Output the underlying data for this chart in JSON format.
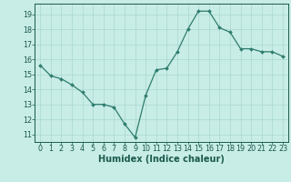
{
  "x": [
    0,
    1,
    2,
    3,
    4,
    5,
    6,
    7,
    8,
    9,
    10,
    11,
    12,
    13,
    14,
    15,
    16,
    17,
    18,
    19,
    20,
    21,
    22,
    23
  ],
  "y": [
    15.6,
    14.9,
    14.7,
    14.3,
    13.8,
    13.0,
    13.0,
    12.8,
    11.7,
    10.8,
    13.6,
    15.3,
    15.4,
    16.5,
    18.0,
    19.2,
    19.2,
    18.1,
    17.8,
    16.7,
    16.7,
    16.5,
    16.5,
    16.2
  ],
  "line_color": "#2e7d6e",
  "marker": "D",
  "marker_size": 2.0,
  "bg_color": "#c8ece6",
  "grid_color": "#a8d8d0",
  "xlabel": "Humidex (Indice chaleur)",
  "ylim": [
    10.5,
    19.7
  ],
  "xlim": [
    -0.5,
    23.5
  ],
  "yticks": [
    11,
    12,
    13,
    14,
    15,
    16,
    17,
    18,
    19
  ],
  "xticks": [
    0,
    1,
    2,
    3,
    4,
    5,
    6,
    7,
    8,
    9,
    10,
    11,
    12,
    13,
    14,
    15,
    16,
    17,
    18,
    19,
    20,
    21,
    22,
    23
  ],
  "line_color2": "#2e6e5e",
  "tick_color": "#1a5a4e",
  "label_fontsize": 7,
  "tick_fontsize": 5.8
}
